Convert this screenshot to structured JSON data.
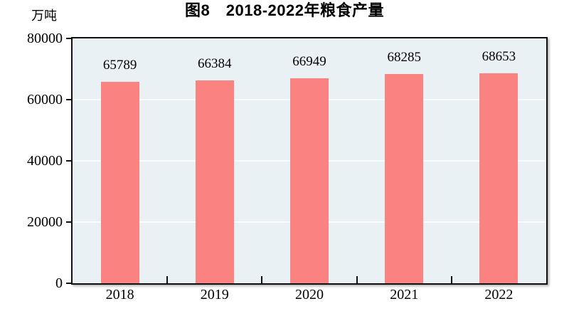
{
  "chart_data": {
    "type": "bar",
    "title": "图8　2018-2022年粮食产量",
    "unit_label": "万吨",
    "ylabel": "万吨",
    "xlabel": "",
    "categories": [
      "2018",
      "2019",
      "2020",
      "2021",
      "2022"
    ],
    "values": [
      65789,
      66384,
      66949,
      68285,
      68653
    ],
    "data_labels": [
      "65789",
      "66384",
      "66949",
      "68285",
      "68653"
    ],
    "ylim": [
      0,
      80000
    ],
    "yticks": [
      0,
      20000,
      40000,
      60000,
      80000
    ],
    "grid": "horizontal",
    "legend": "none",
    "colors": {
      "bar": "#FA8280",
      "plot_background": "#E9F1F4",
      "gridline": "#F8FCFD",
      "axis": "#111111",
      "text": "#000000"
    }
  }
}
